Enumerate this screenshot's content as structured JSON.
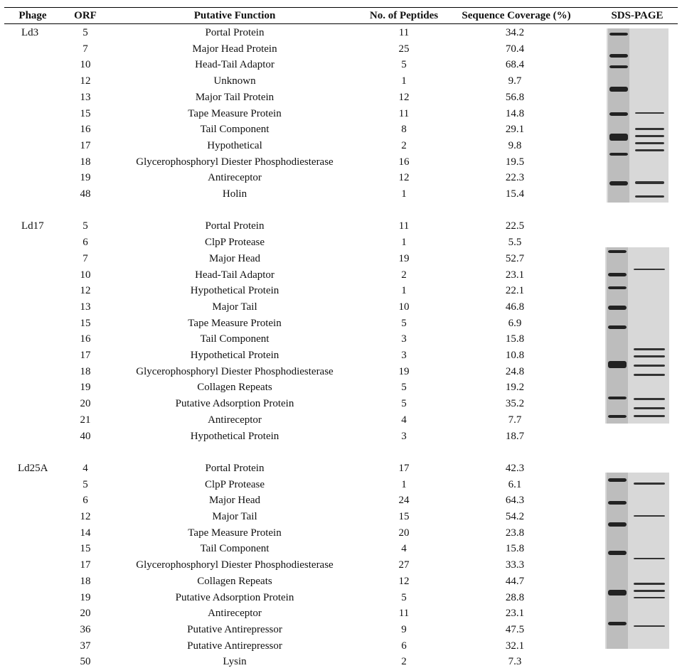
{
  "header": {
    "columns": [
      "Phage",
      "ORF",
      "Putative Function",
      "No. of Peptides",
      "Sequence Coverage (%)",
      "SDS-PAGE"
    ]
  },
  "groups": [
    {
      "phage": "Ld3",
      "rows": [
        [
          "5",
          "Portal Protein",
          "11",
          "34.2"
        ],
        [
          "7",
          "Major Head Protein",
          "25",
          "70.4"
        ],
        [
          "10",
          "Head-Tail Adaptor",
          "5",
          "68.4"
        ],
        [
          "12",
          "Unknown",
          "1",
          "9.7"
        ],
        [
          "13",
          "Major Tail Protein",
          "12",
          "56.8"
        ],
        [
          "15",
          "Tape Measure Protein",
          "11",
          "14.8"
        ],
        [
          "16",
          "Tail Component",
          "8",
          "29.1"
        ],
        [
          "17",
          "Hypothetical",
          "2",
          "9.8"
        ],
        [
          "18",
          "Glycerophosphoryl Diester Phosphodiesterase",
          "16",
          "19.5"
        ],
        [
          "19",
          "Antireceptor",
          "12",
          "22.3"
        ],
        [
          "48",
          "Holin",
          "1",
          "15.4"
        ]
      ]
    },
    {
      "phage": "Ld17",
      "rows": [
        [
          "5",
          "Portal Protein",
          "11",
          "22.5"
        ],
        [
          "6",
          "ClpP Protease",
          "1",
          "5.5"
        ],
        [
          "7",
          "Major Head",
          "19",
          "52.7"
        ],
        [
          "10",
          "Head-Tail Adaptor",
          "2",
          "23.1"
        ],
        [
          "12",
          "Hypothetical Protein",
          "1",
          "22.1"
        ],
        [
          "13",
          "Major Tail",
          "10",
          "46.8"
        ],
        [
          "15",
          "Tape Measure Protein",
          "5",
          "6.9"
        ],
        [
          "16",
          "Tail Component",
          "3",
          "15.8"
        ],
        [
          "17",
          "Hypothetical Protein",
          "3",
          "10.8"
        ],
        [
          "18",
          "Glycerophosphoryl Diester Phosphodiesterase",
          "19",
          "24.8"
        ],
        [
          "19",
          "Collagen Repeats",
          "5",
          "19.2"
        ],
        [
          "20",
          "Putative Adsorption Protein",
          "5",
          "35.2"
        ],
        [
          "21",
          "Antireceptor",
          "4",
          "7.7"
        ],
        [
          "40",
          "Hypothetical Protein",
          "3",
          "18.7"
        ]
      ]
    },
    {
      "phage": "Ld25A",
      "rows": [
        [
          "4",
          "Portal Protein",
          "17",
          "42.3"
        ],
        [
          "5",
          "ClpP Protease",
          "1",
          "6.1"
        ],
        [
          "6",
          "Major Head",
          "24",
          "64.3"
        ],
        [
          "12",
          "Major Tail",
          "15",
          "54.2"
        ],
        [
          "14",
          "Tape Measure Protein",
          "20",
          "23.8"
        ],
        [
          "15",
          "Tail Component",
          "4",
          "15.8"
        ],
        [
          "17",
          "Glycerophosphoryl Diester Phosphodiesterase",
          "27",
          "33.3"
        ],
        [
          "18",
          "Collagen Repeats",
          "12",
          "44.7"
        ],
        [
          "19",
          "Putative Adsorption Protein",
          "5",
          "28.8"
        ],
        [
          "20",
          "Antireceptor",
          "11",
          "23.1"
        ],
        [
          "36",
          "Putative Antirepressor",
          "9",
          "47.5"
        ],
        [
          "37",
          "Putative Antirepressor",
          "6",
          "32.1"
        ],
        [
          "50",
          "Lysin",
          "2",
          "7.3"
        ]
      ]
    }
  ]
}
